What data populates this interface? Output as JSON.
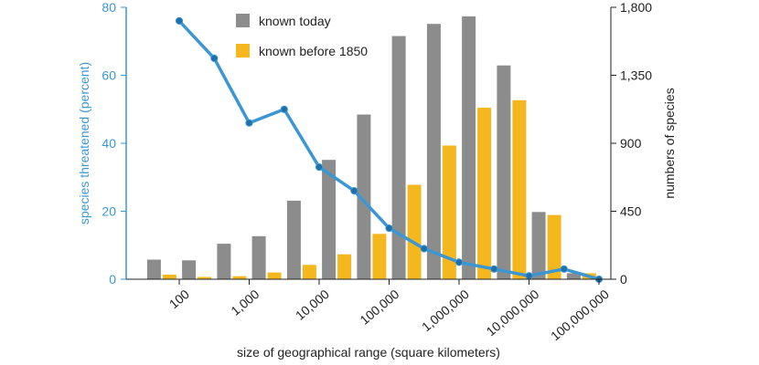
{
  "chart_data": {
    "type": "bar",
    "xlabel": "size of geographical range (square kilometers)",
    "ylabel_left": "species threatened (percent)",
    "ylabel_right": "numbers of species",
    "x_tick_labels": [
      "100",
      "1,000",
      "10,000",
      "100,000",
      "1,000,000",
      "10,000,000",
      "100,000,000"
    ],
    "x_log10_range": [
      1.0,
      8.0
    ],
    "y_left": {
      "lim": [
        0,
        80
      ],
      "ticks": [
        0,
        20,
        40,
        60,
        80
      ],
      "tick_labels": [
        "0",
        "20",
        "40",
        "60",
        "80"
      ]
    },
    "y_right": {
      "lim": [
        0,
        1800
      ],
      "ticks": [
        0,
        450,
        900,
        1350,
        1800
      ],
      "tick_labels": [
        "0",
        "450",
        "900",
        "1,350",
        "1,800"
      ]
    },
    "bin_centers_log10": [
      1.75,
      2.25,
      2.75,
      3.25,
      3.75,
      4.25,
      4.75,
      5.25,
      5.75,
      6.25,
      6.75,
      7.25,
      7.75
    ],
    "series": [
      {
        "name": "known today",
        "axis": "right",
        "color": "#8c8c8c",
        "values": [
          130,
          125,
          235,
          285,
          520,
          790,
          1090,
          1610,
          1690,
          1740,
          1415,
          445,
          40
        ]
      },
      {
        "name": "known before 1850",
        "axis": "right",
        "color": "#f5b71e",
        "values": [
          30,
          15,
          20,
          45,
          95,
          165,
          300,
          625,
          885,
          1135,
          1185,
          425,
          40
        ]
      },
      {
        "name": "",
        "axis": "left",
        "type": "line",
        "color": "#3a97d4",
        "x_log10": [
          2.0,
          2.5,
          3.0,
          3.5,
          4.0,
          4.5,
          5.0,
          5.5,
          6.0,
          6.5,
          7.0,
          7.5,
          8.0
        ],
        "values": [
          76,
          65,
          46,
          50,
          33,
          26,
          15,
          9,
          5,
          3,
          1,
          3,
          0
        ]
      }
    ],
    "legend": {
      "position": "top-left",
      "entries": [
        "known today",
        "known before 1850"
      ]
    },
    "grid": false
  }
}
